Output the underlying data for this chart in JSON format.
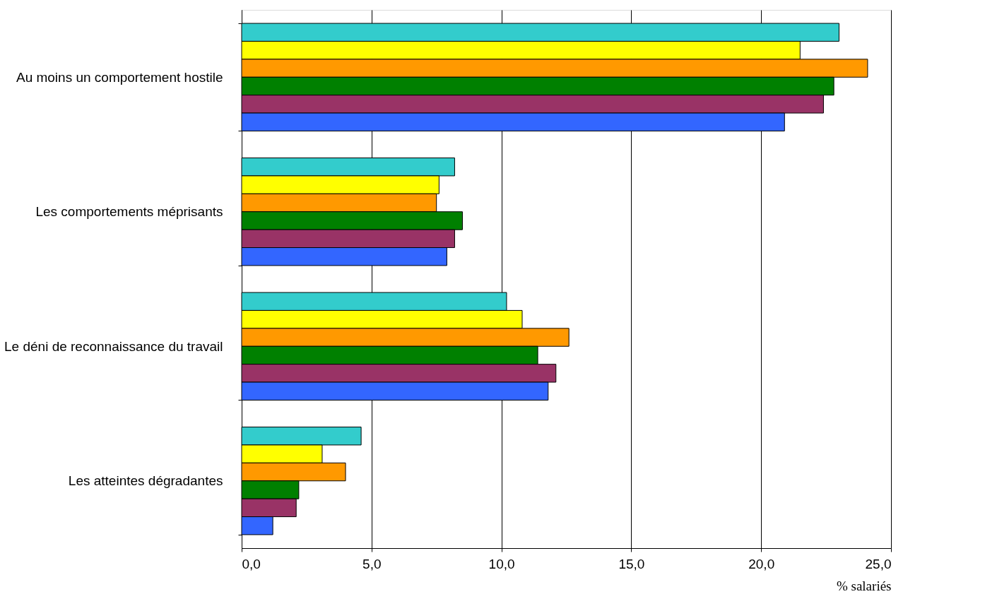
{
  "chart_data": {
    "type": "bar",
    "orientation": "horizontal",
    "xlabel": "% salariés",
    "categories": [
      "Au moins un comportement hostile",
      "Les comportements méprisants",
      "Le déni de reconnaissance du travail",
      "Les atteintes dégradantes"
    ],
    "series": [
      {
        "color": "#33cccc",
        "values": [
          23.0,
          8.2,
          10.2,
          4.6
        ]
      },
      {
        "color": "#ffff00",
        "values": [
          21.5,
          7.6,
          10.8,
          3.1
        ]
      },
      {
        "color": "#ff9900",
        "values": [
          24.1,
          7.5,
          12.6,
          4.0
        ]
      },
      {
        "color": "#008000",
        "values": [
          22.8,
          8.5,
          11.4,
          2.2
        ]
      },
      {
        "color": "#993366",
        "values": [
          22.4,
          8.2,
          12.1,
          2.1
        ]
      },
      {
        "color": "#3366ff",
        "values": [
          20.9,
          7.9,
          11.8,
          1.2
        ]
      }
    ],
    "xlim": [
      0,
      25
    ],
    "xticks": [
      {
        "value": 0,
        "label": "0,0"
      },
      {
        "value": 5,
        "label": "5,0"
      },
      {
        "value": 10,
        "label": "10,0"
      },
      {
        "value": 15,
        "label": "15,0"
      },
      {
        "value": 20,
        "label": "20,0"
      },
      {
        "value": 25,
        "label": "25,0"
      }
    ],
    "grid": "x",
    "legend": false
  }
}
